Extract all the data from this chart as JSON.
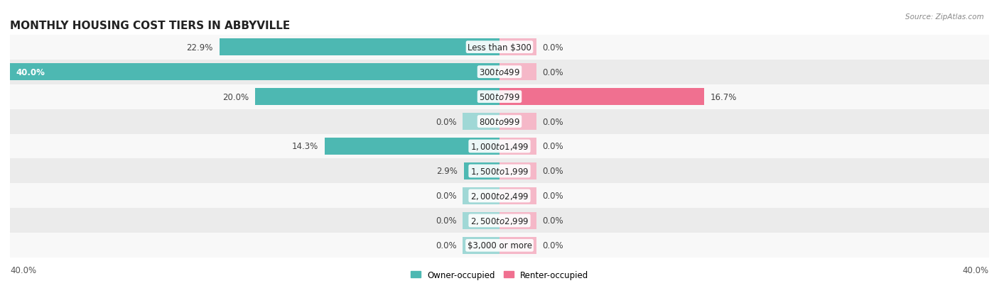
{
  "title": "MONTHLY HOUSING COST TIERS IN ABBYVILLE",
  "source": "Source: ZipAtlas.com",
  "categories": [
    "Less than $300",
    "$300 to $499",
    "$500 to $799",
    "$800 to $999",
    "$1,000 to $1,499",
    "$1,500 to $1,999",
    "$2,000 to $2,499",
    "$2,500 to $2,999",
    "$3,000 or more"
  ],
  "owner_values": [
    22.9,
    40.0,
    20.0,
    0.0,
    14.3,
    2.9,
    0.0,
    0.0,
    0.0
  ],
  "renter_values": [
    0.0,
    0.0,
    16.7,
    0.0,
    0.0,
    0.0,
    0.0,
    0.0,
    0.0
  ],
  "owner_color": "#4db8b2",
  "renter_color": "#f07090",
  "owner_color_light": "#a0d8d6",
  "renter_color_light": "#f5b8c8",
  "bg_row_dark": "#ebebeb",
  "bg_row_light": "#f8f8f8",
  "axis_max": 40.0,
  "stub_size": 3.0,
  "bar_height": 0.7,
  "title_fontsize": 11,
  "label_fontsize": 8.5,
  "source_fontsize": 7.5
}
